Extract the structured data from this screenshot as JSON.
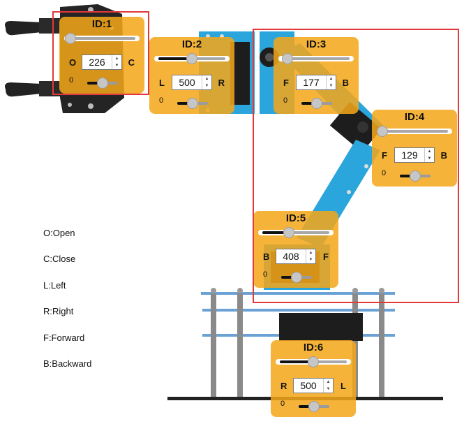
{
  "panels": [
    {
      "id": "ID:1",
      "value": "226",
      "left_label": "O",
      "right_label": "C",
      "zero_label": "0",
      "slider_fraction": 0.03,
      "small_slider_fraction": 0.5
    },
    {
      "id": "ID:2",
      "value": "500",
      "left_label": "L",
      "right_label": "R",
      "zero_label": "0",
      "slider_fraction": 0.5,
      "small_slider_fraction": 0.5
    },
    {
      "id": "ID:3",
      "value": "177",
      "left_label": "F",
      "right_label": "B",
      "zero_label": "0",
      "slider_fraction": 0.07,
      "small_slider_fraction": 0.5
    },
    {
      "id": "ID:4",
      "value": "129",
      "left_label": "F",
      "right_label": "B",
      "zero_label": "0",
      "slider_fraction": 0.02,
      "small_slider_fraction": 0.5
    },
    {
      "id": "ID:5",
      "value": "408",
      "left_label": "B",
      "right_label": "F",
      "zero_label": "0",
      "slider_fraction": 0.4,
      "small_slider_fraction": 0.5
    },
    {
      "id": "ID:6",
      "value": "500",
      "left_label": "R",
      "right_label": "L",
      "zero_label": "0",
      "slider_fraction": 0.5,
      "small_slider_fraction": 0.5
    }
  ],
  "legend": [
    "O:Open",
    "C:Close",
    "L:Left",
    "R:Right",
    "F:Forward",
    "B:Backward"
  ],
  "colors": {
    "panel": "#f5a619",
    "highlight_box": "#e3393b",
    "servo_blue": "#2aa6dc",
    "servo_black": "#1d1d1d"
  }
}
